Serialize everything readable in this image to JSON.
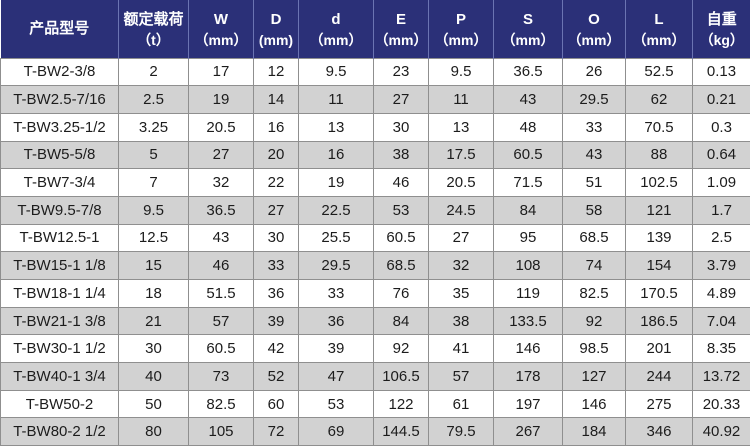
{
  "colors": {
    "header_bg": "#2b3078",
    "header_text": "#ffffff",
    "header_divider": "#6b74b2",
    "grid_border": "#8f8f8f",
    "row_white": "#ffffff",
    "row_gray": "#d2d2d2",
    "body_text": "#1c1c1c"
  },
  "chart_data": {
    "type": "table",
    "title": "",
    "legend": "none",
    "grid": "on",
    "columns": [
      {
        "key": "model",
        "title": "产品型号",
        "unit": ""
      },
      {
        "key": "rated_load",
        "title": "额定载荷",
        "unit": "（t）"
      },
      {
        "key": "W",
        "title": "W",
        "unit": "（mm）"
      },
      {
        "key": "D",
        "title": "D",
        "unit": "(mm)"
      },
      {
        "key": "d",
        "title": "d",
        "unit": "（mm）"
      },
      {
        "key": "E",
        "title": "E",
        "unit": "（mm）"
      },
      {
        "key": "P",
        "title": "P",
        "unit": "（mm）"
      },
      {
        "key": "S",
        "title": "S",
        "unit": "（mm）"
      },
      {
        "key": "O",
        "title": "O",
        "unit": "（mm）"
      },
      {
        "key": "L",
        "title": "L",
        "unit": "（mm）"
      },
      {
        "key": "weight",
        "title": "自重",
        "unit": "（kg）"
      }
    ],
    "rows": [
      [
        "T-BW2-3/8",
        "2",
        "17",
        "12",
        "9.5",
        "23",
        "9.5",
        "36.5",
        "26",
        "52.5",
        "0.13"
      ],
      [
        "T-BW2.5-7/16",
        "2.5",
        "19",
        "14",
        "11",
        "27",
        "11",
        "43",
        "29.5",
        "62",
        "0.21"
      ],
      [
        "T-BW3.25-1/2",
        "3.25",
        "20.5",
        "16",
        "13",
        "30",
        "13",
        "48",
        "33",
        "70.5",
        "0.3"
      ],
      [
        "T-BW5-5/8",
        "5",
        "27",
        "20",
        "16",
        "38",
        "17.5",
        "60.5",
        "43",
        "88",
        "0.64"
      ],
      [
        "T-BW7-3/4",
        "7",
        "32",
        "22",
        "19",
        "46",
        "20.5",
        "71.5",
        "51",
        "102.5",
        "1.09"
      ],
      [
        "T-BW9.5-7/8",
        "9.5",
        "36.5",
        "27",
        "22.5",
        "53",
        "24.5",
        "84",
        "58",
        "121",
        "1.7"
      ],
      [
        "T-BW12.5-1",
        "12.5",
        "43",
        "30",
        "25.5",
        "60.5",
        "27",
        "95",
        "68.5",
        "139",
        "2.5"
      ],
      [
        "T-BW15-1 1/8",
        "15",
        "46",
        "33",
        "29.5",
        "68.5",
        "32",
        "108",
        "74",
        "154",
        "3.79"
      ],
      [
        "T-BW18-1 1/4",
        "18",
        "51.5",
        "36",
        "33",
        "76",
        "35",
        "119",
        "82.5",
        "170.5",
        "4.89"
      ],
      [
        "T-BW21-1 3/8",
        "21",
        "57",
        "39",
        "36",
        "84",
        "38",
        "133.5",
        "92",
        "186.5",
        "7.04"
      ],
      [
        "T-BW30-1 1/2",
        "30",
        "60.5",
        "42",
        "39",
        "92",
        "41",
        "146",
        "98.5",
        "201",
        "8.35"
      ],
      [
        "T-BW40-1 3/4",
        "40",
        "73",
        "52",
        "47",
        "106.5",
        "57",
        "178",
        "127",
        "244",
        "13.72"
      ],
      [
        "T-BW50-2",
        "50",
        "82.5",
        "60",
        "53",
        "122",
        "61",
        "197",
        "146",
        "275",
        "20.33"
      ],
      [
        "T-BW80-2 1/2",
        "80",
        "105",
        "72",
        "69",
        "144.5",
        "79.5",
        "267",
        "184",
        "346",
        "40.92"
      ]
    ]
  }
}
